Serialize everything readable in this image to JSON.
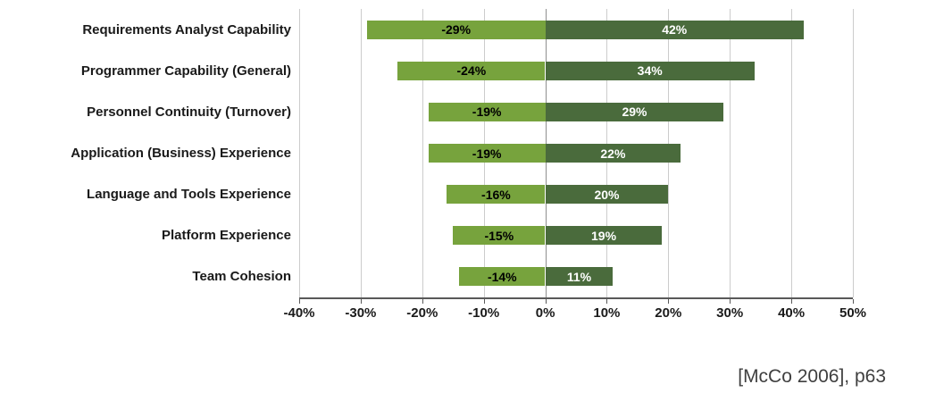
{
  "chart_data": {
    "type": "bar",
    "orientation": "horizontal",
    "diverging": true,
    "title": "",
    "xlabel": "",
    "ylabel": "",
    "categories": [
      "Requirements Analyst Capability",
      "Programmer Capability (General)",
      "Personnel Continuity (Turnover)",
      "Application (Business) Experience",
      "Language and Tools Experience",
      "Platform Experience",
      "Team Cohesion"
    ],
    "series": [
      {
        "name": "decrease",
        "color": "#77A33D",
        "label_color": "#000000",
        "values": [
          -29,
          -24,
          -19,
          -19,
          -16,
          -15,
          -14
        ],
        "labels": [
          "-29%",
          "-24%",
          "-19%",
          "-19%",
          "-16%",
          "-15%",
          "-14%"
        ]
      },
      {
        "name": "increase",
        "color": "#4A6B3C",
        "label_color": "#FFFFFF",
        "values": [
          42,
          34,
          29,
          22,
          20,
          19,
          11
        ],
        "labels": [
          "42%",
          "34%",
          "29%",
          "22%",
          "20%",
          "19%",
          "11%"
        ]
      }
    ],
    "x_ticks": [
      "-40%",
      "-30%",
      "-20%",
      "-10%",
      "0%",
      "10%",
      "20%",
      "30%",
      "40%",
      "50%"
    ],
    "x_tick_values": [
      -40,
      -30,
      -20,
      -10,
      0,
      10,
      20,
      30,
      40,
      50
    ],
    "xlim": [
      -40,
      50
    ],
    "grid": true,
    "legend": "none"
  },
  "citation": "[McCo 2006], p63"
}
